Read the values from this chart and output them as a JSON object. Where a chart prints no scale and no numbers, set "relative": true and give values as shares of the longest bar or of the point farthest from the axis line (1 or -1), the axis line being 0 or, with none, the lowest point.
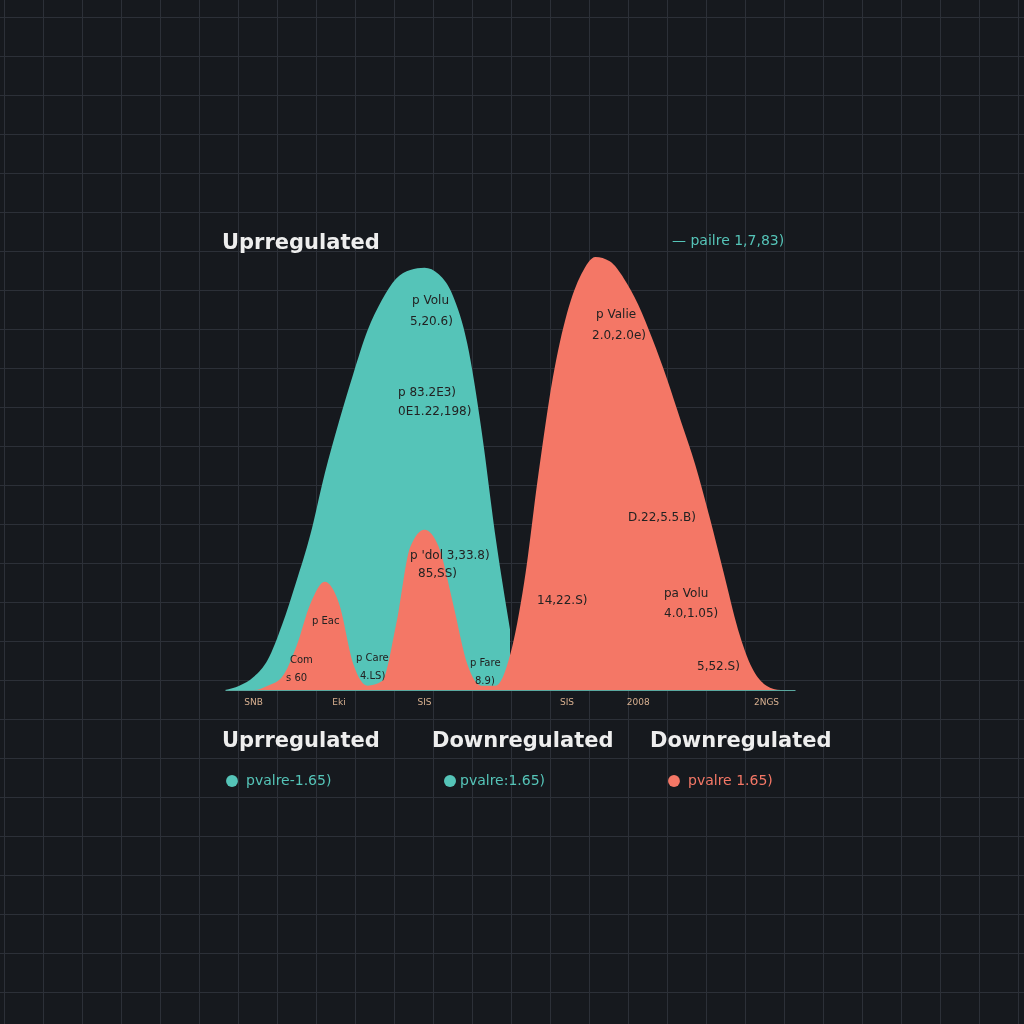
{
  "chart_data": {
    "type": "area",
    "title": "Uprregulated",
    "relative": true,
    "tick_labels": "x",
    "legend": "bottom",
    "categories": [
      null,
      null,
      "SNB",
      null,
      null,
      null,
      null,
      null,
      "Eki",
      null,
      null,
      null,
      null,
      null,
      "SIS",
      null,
      null,
      null,
      null,
      null,
      null,
      null,
      null,
      null,
      "SIS",
      null,
      null,
      null,
      null,
      "2008",
      null,
      null,
      null,
      null,
      null,
      null,
      null,
      null,
      "2NGS",
      null,
      null
    ],
    "series": [
      {
        "name": "pvalre-1.65)",
        "color": "#55c4b8",
        "values": [
          0,
          0.01,
          0.03,
          0.07,
          0.15,
          0.25,
          0.36,
          0.5,
          0.62,
          0.73,
          0.83,
          0.9,
          0.95,
          0.97,
          0.975,
          0.96,
          0.91,
          0.8,
          0.6,
          0.35,
          0.14,
          null,
          null,
          null,
          null,
          null,
          null,
          null,
          null,
          null,
          null,
          null,
          null,
          null,
          null,
          null,
          null,
          null,
          null,
          null,
          null
        ]
      },
      {
        "name": "pvalre 1.65)",
        "color": "#f47766",
        "values": [
          0,
          0,
          0,
          0.01,
          0.03,
          0.1,
          0.2,
          0.25,
          0.2,
          0.06,
          0.01,
          0.02,
          0.15,
          0.33,
          0.37,
          0.33,
          0.2,
          0.06,
          0.01,
          0.01,
          0.08,
          0.25,
          0.5,
          0.72,
          0.87,
          0.96,
          1.0,
          0.99,
          0.95,
          0.89,
          0.81,
          0.72,
          0.62,
          0.52,
          0.4,
          0.27,
          0.14,
          0.05,
          0.01,
          0,
          0
        ]
      }
    ],
    "annotations": [
      "— pailre 1,7,83)",
      "p Volu",
      "5,20.6)",
      "p 83.2E3)",
      "0E1.22,198)",
      "p Valie",
      "2.0,2.0e)",
      "p 'dol 3,33.8)",
      "85,SS)",
      "14,22.S)",
      "D.22,5.5.B)",
      "pa Volu",
      "4.0,1.05)",
      "5,52.S)",
      "p Eac",
      "Com",
      "s 60",
      "p Care",
      "4.LS)",
      "p Fare",
      "8.9)",
      "Uprregulated",
      "Downregulated",
      "Downregulated",
      "pvalre:1.65)"
    ]
  }
}
